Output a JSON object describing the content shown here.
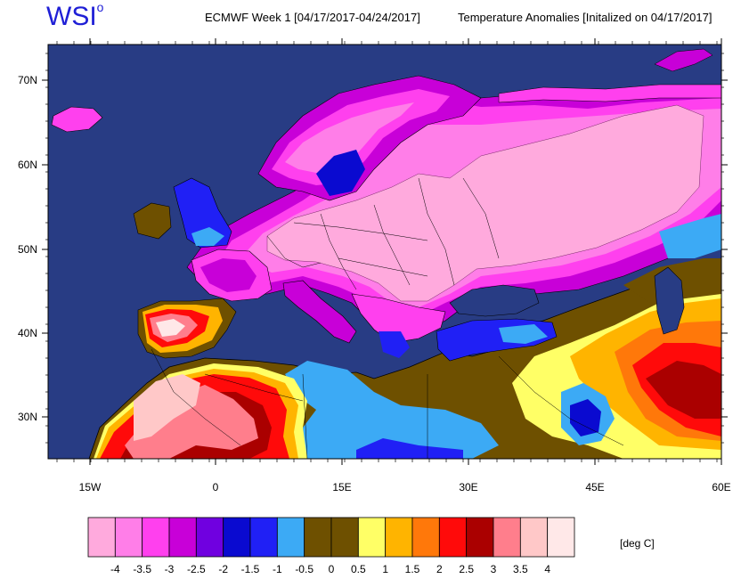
{
  "header": {
    "logo": "WSI",
    "logo_mark": "o",
    "left_title": "ECMWF Week 1 [04/17/2017-04/24/2017]",
    "right_title": "Temperature Anomalies [Initalized on 04/17/2017]"
  },
  "map": {
    "lat_ticks": [
      "70N",
      "60N",
      "50N",
      "40N",
      "30N"
    ],
    "lon_ticks": [
      "15W",
      "0",
      "15E",
      "30E",
      "45E",
      "60E"
    ],
    "ocean_color": "#283c84",
    "land_outline_color": "#000000"
  },
  "legend": {
    "units": "[deg C]",
    "labels": [
      "-4",
      "-3.5",
      "-3",
      "-2.5",
      "-2",
      "-1.5",
      "-1",
      "-0.5",
      "0",
      "0.5",
      "1",
      "1.5",
      "2",
      "2.5",
      "3",
      "3.5",
      "4"
    ],
    "colors": [
      "#ffaadd",
      "#ff7ee8",
      "#ff40ee",
      "#c800d8",
      "#7000e0",
      "#0a0ad0",
      "#2020f5",
      "#3caaf5",
      "#6e5000",
      "#6e5000",
      "#ffff66",
      "#ffb400",
      "#ff780a",
      "#ff0a0a",
      "#aa0000",
      "#ff7e8c",
      "#ffc8c8",
      "#ffe8e8"
    ]
  }
}
